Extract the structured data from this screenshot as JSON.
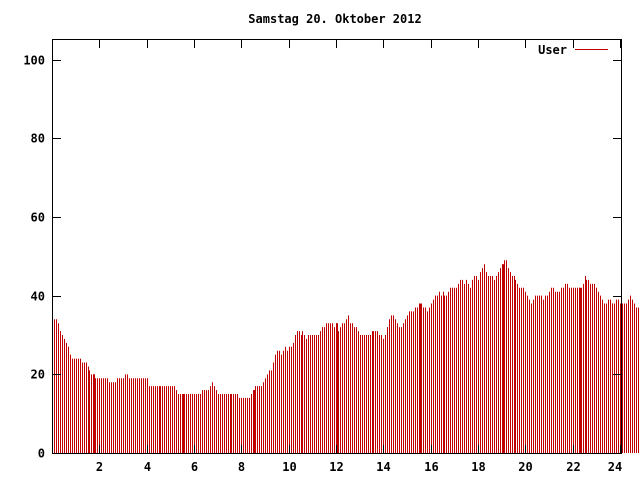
{
  "chart_data": {
    "type": "bar",
    "title": "Samstag 20. Oktober 2012",
    "xlabel": "",
    "ylabel": "",
    "xlim": [
      0,
      24
    ],
    "ylim": [
      0,
      105
    ],
    "x_ticks": [
      2,
      4,
      6,
      8,
      10,
      12,
      14,
      16,
      18,
      20,
      22,
      24
    ],
    "x_tick_labels": [
      "2",
      "4",
      "6",
      "8",
      "10",
      "12",
      "14",
      "16",
      "18",
      "20",
      "22",
      "24"
    ],
    "y_ticks": [
      0,
      20,
      40,
      60,
      80,
      100
    ],
    "y_tick_labels": [
      "0",
      "20",
      "40",
      "60",
      "80",
      "100"
    ],
    "grid": false,
    "legend": {
      "placement": "top-right",
      "entries": [
        "User"
      ]
    },
    "series": [
      {
        "name": "User",
        "color": "#c00000",
        "interval_minutes": 5,
        "values": [
          34,
          34,
          33,
          31,
          30,
          29,
          28,
          27,
          25,
          24,
          24,
          24,
          24,
          24,
          23,
          23,
          23,
          22,
          21,
          20,
          20,
          19,
          19,
          19,
          19,
          19,
          19,
          19,
          18,
          18,
          18,
          18,
          19,
          19,
          19,
          19,
          20,
          20,
          19,
          19,
          19,
          19,
          19,
          19,
          19,
          19,
          19,
          19,
          17,
          17,
          17,
          17,
          17,
          17,
          17,
          17,
          17,
          17,
          17,
          17,
          17,
          17,
          16,
          15,
          15,
          15,
          15,
          15,
          15,
          15,
          15,
          15,
          15,
          15,
          15,
          16,
          16,
          16,
          16,
          17,
          18,
          17,
          16,
          15,
          15,
          15,
          15,
          15,
          15,
          15,
          15,
          15,
          15,
          15,
          14,
          14,
          14,
          14,
          14,
          14,
          15,
          16,
          17,
          17,
          17,
          17,
          18,
          19,
          20,
          21,
          21,
          23,
          25,
          26,
          26,
          25,
          26,
          27,
          26,
          27,
          27,
          28,
          30,
          31,
          31,
          30,
          31,
          30,
          29,
          30,
          30,
          30,
          30,
          30,
          30,
          31,
          32,
          32,
          33,
          33,
          33,
          33,
          32,
          33,
          31,
          32,
          33,
          33,
          34,
          35,
          33,
          33,
          32,
          32,
          31,
          30,
          30,
          30,
          30,
          30,
          30,
          31,
          31,
          31,
          31,
          30,
          30,
          29,
          30,
          32,
          34,
          35,
          35,
          34,
          33,
          32,
          32,
          33,
          34,
          35,
          36,
          36,
          36,
          37,
          37,
          38,
          38,
          37,
          37,
          36,
          37,
          38,
          39,
          40,
          40,
          41,
          40,
          41,
          40,
          40,
          41,
          42,
          42,
          42,
          42,
          43,
          44,
          44,
          43,
          44,
          43,
          42,
          44,
          45,
          45,
          44,
          46,
          47,
          48,
          46,
          45,
          45,
          45,
          44,
          45,
          46,
          47,
          48,
          49,
          49,
          47,
          46,
          45,
          45,
          44,
          43,
          42,
          42,
          42,
          41,
          40,
          39,
          38,
          39,
          40,
          40,
          40,
          40,
          39,
          40,
          40,
          41,
          42,
          42,
          41,
          41,
          41,
          42,
          42,
          43,
          43,
          42,
          42,
          42,
          42,
          42,
          42,
          42,
          43,
          45,
          44,
          44,
          43,
          43,
          43,
          42,
          41,
          40,
          39,
          38,
          38,
          39,
          39,
          38,
          38,
          39,
          39,
          38,
          38,
          38,
          38,
          39,
          40,
          39,
          38,
          37,
          37,
          36
        ]
      }
    ],
    "highlighted_x": [
      1.75,
      5.5,
      8.5,
      12.0,
      15.5,
      19.0,
      22.25
    ]
  }
}
